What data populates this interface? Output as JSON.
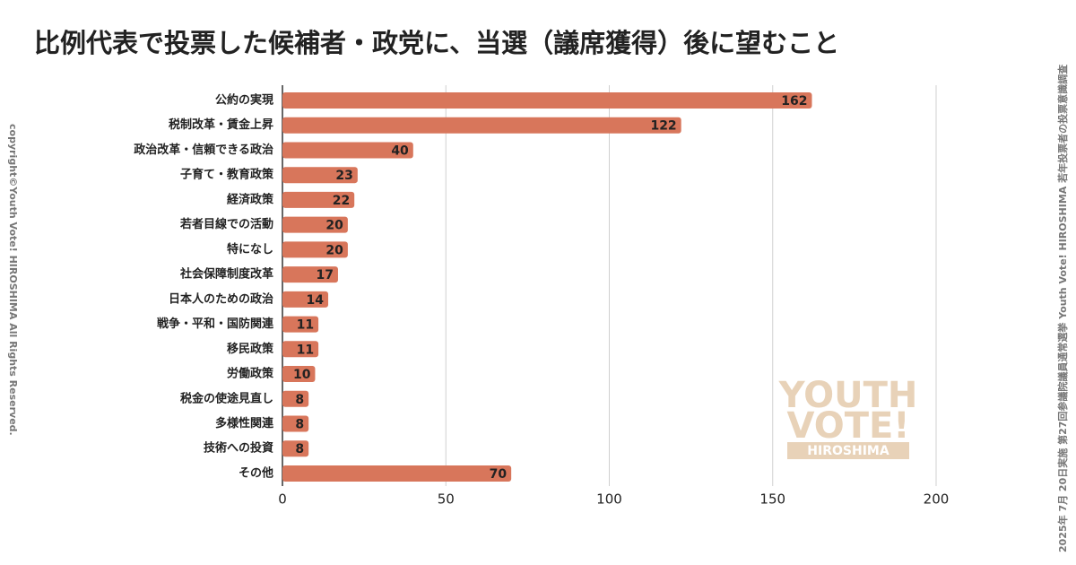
{
  "chart_data": {
    "type": "bar",
    "orientation": "horizontal",
    "title": "比例代表で投票した候補者・政党に、当選（議席獲得）後に望むこと",
    "categories": [
      "公約の実現",
      "税制改革・賃金上昇",
      "政治改革・信頼できる政治",
      "子育て・教育政策",
      "経済政策",
      "若者目線での活動",
      "特になし",
      "社会保障制度改革",
      "日本人のための政治",
      "戦争・平和・国防関連",
      "移民政策",
      "労働政策",
      "税金の使途見直し",
      "多様性関連",
      "技術への投資",
      "その他"
    ],
    "values": [
      162,
      122,
      40,
      23,
      22,
      20,
      20,
      17,
      14,
      11,
      11,
      10,
      8,
      8,
      8,
      70
    ],
    "color": "#d8765b",
    "xlim": [
      0,
      200
    ],
    "xticks": [
      0,
      50,
      100,
      150,
      200
    ],
    "grid": true
  },
  "copyright": "copyright©Youth Vote! HIROSHIMA  All Rights Reserved.",
  "source": "2025年 7月 20日実施 第27回参議院議員通常選挙 Youth Vote! HIROSHIMA 若年投票者の投票意識調査",
  "logo": {
    "line1": "YOUTH",
    "line2": "VOTE!",
    "line3": "HIROSHIMA"
  }
}
